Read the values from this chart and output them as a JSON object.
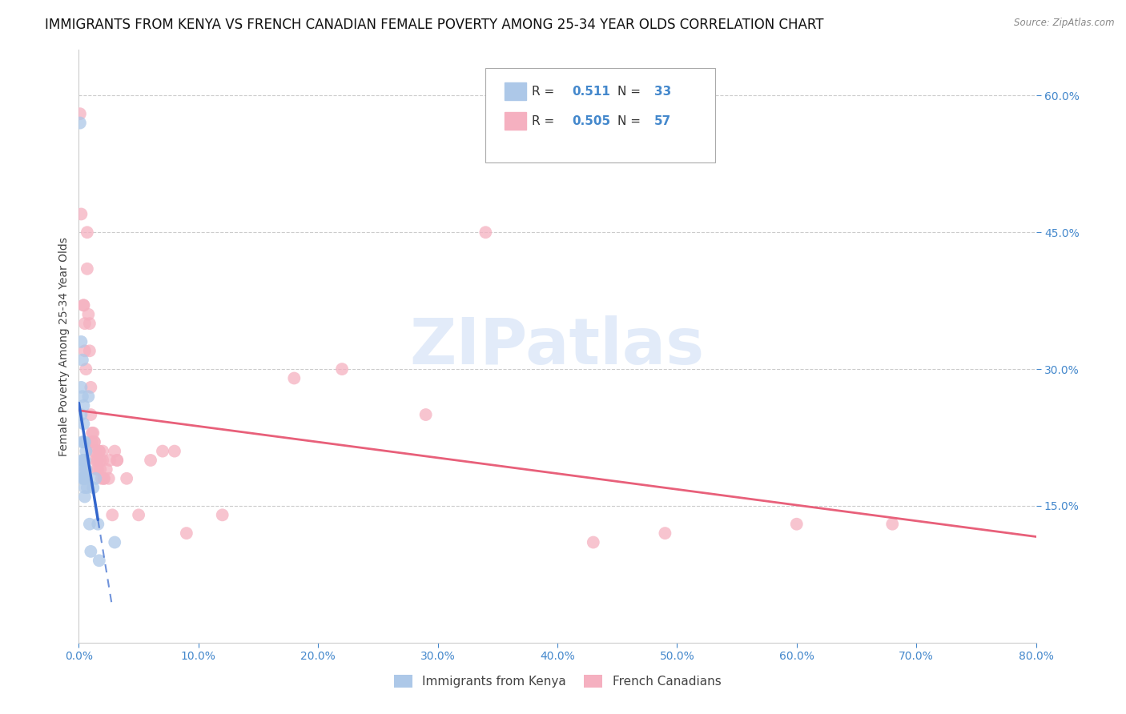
{
  "title": "IMMIGRANTS FROM KENYA VS FRENCH CANADIAN FEMALE POVERTY AMONG 25-34 YEAR OLDS CORRELATION CHART",
  "source": "Source: ZipAtlas.com",
  "ylabel": "Female Poverty Among 25-34 Year Olds",
  "xlim": [
    0.0,
    0.8
  ],
  "ylim": [
    0.0,
    0.65
  ],
  "yticks": [
    0.15,
    0.3,
    0.45,
    0.6
  ],
  "xticks": [
    0.0,
    0.1,
    0.2,
    0.3,
    0.4,
    0.5,
    0.6,
    0.7,
    0.8
  ],
  "kenya_R": 0.511,
  "kenya_N": 33,
  "french_R": 0.505,
  "french_N": 57,
  "kenya_color": "#adc8e8",
  "french_color": "#f5b0c0",
  "kenya_line_color": "#3366cc",
  "french_line_color": "#e8607a",
  "watermark": "ZIPatlas",
  "watermark_color": "#d0dff5",
  "kenya_scatter": [
    [
      0.001,
      0.57
    ],
    [
      0.002,
      0.33
    ],
    [
      0.002,
      0.28
    ],
    [
      0.002,
      0.25
    ],
    [
      0.003,
      0.31
    ],
    [
      0.003,
      0.27
    ],
    [
      0.003,
      0.22
    ],
    [
      0.003,
      0.2
    ],
    [
      0.003,
      0.19
    ],
    [
      0.003,
      0.18
    ],
    [
      0.004,
      0.26
    ],
    [
      0.004,
      0.24
    ],
    [
      0.004,
      0.22
    ],
    [
      0.004,
      0.2
    ],
    [
      0.004,
      0.19
    ],
    [
      0.004,
      0.18
    ],
    [
      0.005,
      0.22
    ],
    [
      0.005,
      0.2
    ],
    [
      0.005,
      0.18
    ],
    [
      0.005,
      0.17
    ],
    [
      0.005,
      0.16
    ],
    [
      0.006,
      0.21
    ],
    [
      0.006,
      0.19
    ],
    [
      0.006,
      0.18
    ],
    [
      0.007,
      0.17
    ],
    [
      0.008,
      0.27
    ],
    [
      0.009,
      0.13
    ],
    [
      0.01,
      0.1
    ],
    [
      0.012,
      0.17
    ],
    [
      0.014,
      0.18
    ],
    [
      0.016,
      0.13
    ],
    [
      0.017,
      0.09
    ],
    [
      0.03,
      0.11
    ]
  ],
  "french_scatter": [
    [
      0.001,
      0.58
    ],
    [
      0.002,
      0.47
    ],
    [
      0.004,
      0.37
    ],
    [
      0.004,
      0.37
    ],
    [
      0.005,
      0.35
    ],
    [
      0.005,
      0.32
    ],
    [
      0.006,
      0.3
    ],
    [
      0.007,
      0.45
    ],
    [
      0.007,
      0.41
    ],
    [
      0.008,
      0.36
    ],
    [
      0.009,
      0.35
    ],
    [
      0.009,
      0.32
    ],
    [
      0.01,
      0.28
    ],
    [
      0.01,
      0.25
    ],
    [
      0.011,
      0.23
    ],
    [
      0.011,
      0.22
    ],
    [
      0.012,
      0.23
    ],
    [
      0.012,
      0.21
    ],
    [
      0.013,
      0.22
    ],
    [
      0.013,
      0.22
    ],
    [
      0.014,
      0.21
    ],
    [
      0.014,
      0.2
    ],
    [
      0.015,
      0.2
    ],
    [
      0.015,
      0.19
    ],
    [
      0.016,
      0.2
    ],
    [
      0.016,
      0.19
    ],
    [
      0.017,
      0.21
    ],
    [
      0.017,
      0.21
    ],
    [
      0.018,
      0.2
    ],
    [
      0.018,
      0.19
    ],
    [
      0.019,
      0.18
    ],
    [
      0.02,
      0.21
    ],
    [
      0.02,
      0.2
    ],
    [
      0.021,
      0.18
    ],
    [
      0.021,
      0.18
    ],
    [
      0.023,
      0.19
    ],
    [
      0.025,
      0.18
    ],
    [
      0.026,
      0.2
    ],
    [
      0.028,
      0.14
    ],
    [
      0.03,
      0.21
    ],
    [
      0.032,
      0.2
    ],
    [
      0.032,
      0.2
    ],
    [
      0.04,
      0.18
    ],
    [
      0.05,
      0.14
    ],
    [
      0.06,
      0.2
    ],
    [
      0.07,
      0.21
    ],
    [
      0.08,
      0.21
    ],
    [
      0.09,
      0.12
    ],
    [
      0.12,
      0.14
    ],
    [
      0.18,
      0.29
    ],
    [
      0.22,
      0.3
    ],
    [
      0.29,
      0.25
    ],
    [
      0.34,
      0.45
    ],
    [
      0.43,
      0.11
    ],
    [
      0.49,
      0.12
    ],
    [
      0.6,
      0.13
    ],
    [
      0.68,
      0.13
    ]
  ],
  "title_fontsize": 12,
  "axis_label_fontsize": 10,
  "tick_fontsize": 10,
  "legend_fontsize": 11
}
